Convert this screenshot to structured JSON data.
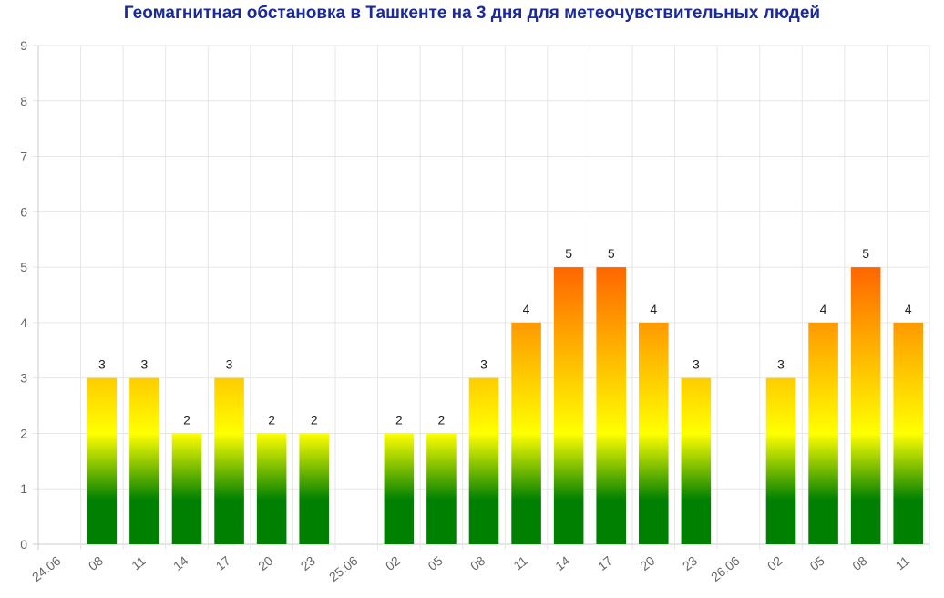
{
  "chart_data": {
    "type": "bar",
    "title": "Геомагнитная обстановка в Ташкенте на 3 дня для метеочувствительных людей",
    "xlabel": "",
    "ylabel": "",
    "ylim": [
      0,
      9
    ],
    "yticks": [
      0,
      1,
      2,
      3,
      4,
      5,
      6,
      7,
      8,
      9
    ],
    "grid": true,
    "legend": "none",
    "categories": [
      "24.06",
      "08",
      "11",
      "14",
      "17",
      "20",
      "23",
      "25.06",
      "02",
      "05",
      "08",
      "11",
      "14",
      "17",
      "20",
      "23",
      "26.06",
      "02",
      "05",
      "08",
      "11"
    ],
    "values": [
      null,
      3,
      3,
      2,
      3,
      2,
      2,
      null,
      2,
      2,
      3,
      4,
      5,
      5,
      4,
      3,
      null,
      3,
      4,
      5,
      4
    ],
    "colors": {
      "low": "#008000",
      "mid": "#ffff00",
      "high": "#ff6600",
      "grid": "#e6e6e6",
      "axis": "#cccccc",
      "title": "#1a2a9a"
    }
  }
}
